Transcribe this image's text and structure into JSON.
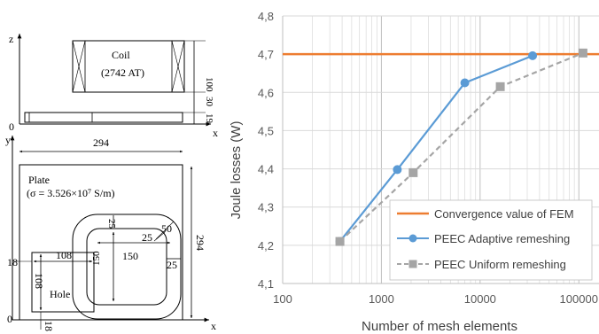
{
  "diagram": {
    "axes": {
      "z": "z",
      "y": "y",
      "x_top": "x",
      "x_bottom": "x",
      "origin_top": "0",
      "origin_bottom": "0"
    },
    "coil": {
      "name": "Coil",
      "turns": "(2742 AT)"
    },
    "plate": {
      "name": "Plate",
      "conductivity": "(σ = 3.526×10⁷ S/m)"
    },
    "hole": {
      "name": "Hole"
    },
    "dims": {
      "coil_height": "100",
      "gap": "30",
      "plate_thickness": "19",
      "plate_width": "294",
      "plate_height": "294",
      "hole_y": "18",
      "hole_x": "18",
      "hole_width": "108",
      "hole_height": "108",
      "coil_side": "150",
      "coil_side_vertical": "150",
      "coil_thickness_top": "25",
      "coil_thickness_right": "25",
      "inner_radius": "25",
      "outer_radius": "50"
    }
  },
  "chart_data": {
    "type": "line",
    "xlabel": "Number of mesh elements",
    "ylabel": "Joule losses (W)",
    "xscale": "log",
    "xlim": [
      100,
      160000
    ],
    "ylim": [
      4.1,
      4.8
    ],
    "x_ticks": [
      "100",
      "1000",
      "10000",
      "100000"
    ],
    "y_ticks": [
      "4,1",
      "4,2",
      "4,3",
      "4,4",
      "4,5",
      "4,6",
      "4,7",
      "4,8"
    ],
    "y_tick_values": [
      4.1,
      4.2,
      4.3,
      4.4,
      4.5,
      4.6,
      4.7,
      4.8
    ],
    "x_tick_values": [
      100,
      1000,
      10000,
      100000
    ],
    "grid": true,
    "legend_position": "bottom-right",
    "reference_line": {
      "name": "Convergence value of FEM",
      "y": 4.7,
      "color": "#ed7d31"
    },
    "series": [
      {
        "name": "PEEC Adaptive remeshing",
        "color": "#5b9bd5",
        "marker": "circle",
        "style": "solid",
        "x": [
          380,
          1450,
          7000,
          34000
        ],
        "y": [
          4.21,
          4.398,
          4.625,
          4.696
        ]
      },
      {
        "name": "PEEC Uniform remeshing",
        "color": "#a5a5a5",
        "marker": "square",
        "style": "dashed",
        "x": [
          380,
          2100,
          16000,
          110000
        ],
        "y": [
          4.21,
          4.39,
          4.615,
          4.703
        ]
      }
    ]
  }
}
